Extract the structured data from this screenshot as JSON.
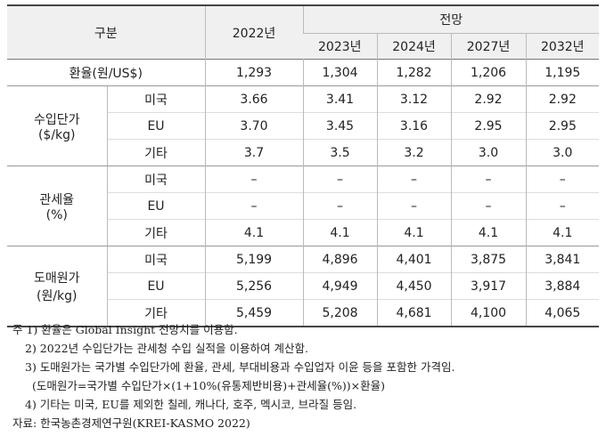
{
  "table": {
    "header": {
      "category": "구분",
      "base_year": "2022년",
      "forecast": "전망",
      "forecast_years": [
        "2023년",
        "2024년",
        "2027년",
        "2032년"
      ]
    },
    "exchange_rate": {
      "label": "환율(원/US$)",
      "values": [
        "1,293",
        "1,304",
        "1,282",
        "1,206",
        "1,195"
      ]
    },
    "groups": [
      {
        "label_lines": [
          "수입단가",
          "($/kg)"
        ],
        "rows": [
          {
            "label": "미국",
            "values": [
              "3.66",
              "3.41",
              "3.12",
              "2.92",
              "2.92"
            ]
          },
          {
            "label": "EU",
            "values": [
              "3.70",
              "3.45",
              "3.16",
              "2.95",
              "2.95"
            ]
          },
          {
            "label": "기타",
            "values": [
              "3.7",
              "3.5",
              "3.2",
              "3.0",
              "3.0"
            ]
          }
        ]
      },
      {
        "label_lines": [
          "관세율",
          "(%)"
        ],
        "rows": [
          {
            "label": "미국",
            "values": [
              "–",
              "–",
              "–",
              "–",
              "–"
            ]
          },
          {
            "label": "EU",
            "values": [
              "–",
              "–",
              "–",
              "–",
              "–"
            ]
          },
          {
            "label": "기타",
            "values": [
              "4.1",
              "4.1",
              "4.1",
              "4.1",
              "4.1"
            ]
          }
        ]
      },
      {
        "label_lines": [
          "도매원가",
          "(원/kg)"
        ],
        "rows": [
          {
            "label": "미국",
            "values": [
              "5,199",
              "4,896",
              "4,401",
              "3,875",
              "3,841"
            ]
          },
          {
            "label": "EU",
            "values": [
              "5,256",
              "4,949",
              "4,450",
              "3,917",
              "3,884"
            ]
          },
          {
            "label": "기타",
            "values": [
              "5,459",
              "5,208",
              "4,681",
              "4,100",
              "4,065"
            ]
          }
        ]
      }
    ]
  },
  "notes": [
    "주 1) 환율은 Global Insight 전망치를 이용함.",
    "2) 2022년 수입단가는 관세청 수입 실적을 이용하여 계산함.",
    "3) 도매원가는 국가별 수입단가에 환율, 관세, 부대비용과 수입업자 이윤 등을 포함한 가격임.",
    "(도매원가=국가별 수입단가×(1+10%(유통제반비용)+관세율(%))×환율)",
    "4) 기타는 미국, EU를 제외한 칠레, 캐나다, 호주, 멕시코, 브라질 등임."
  ],
  "source": "자료: 한국농촌경제연구원(KREI-KASMO 2022)"
}
